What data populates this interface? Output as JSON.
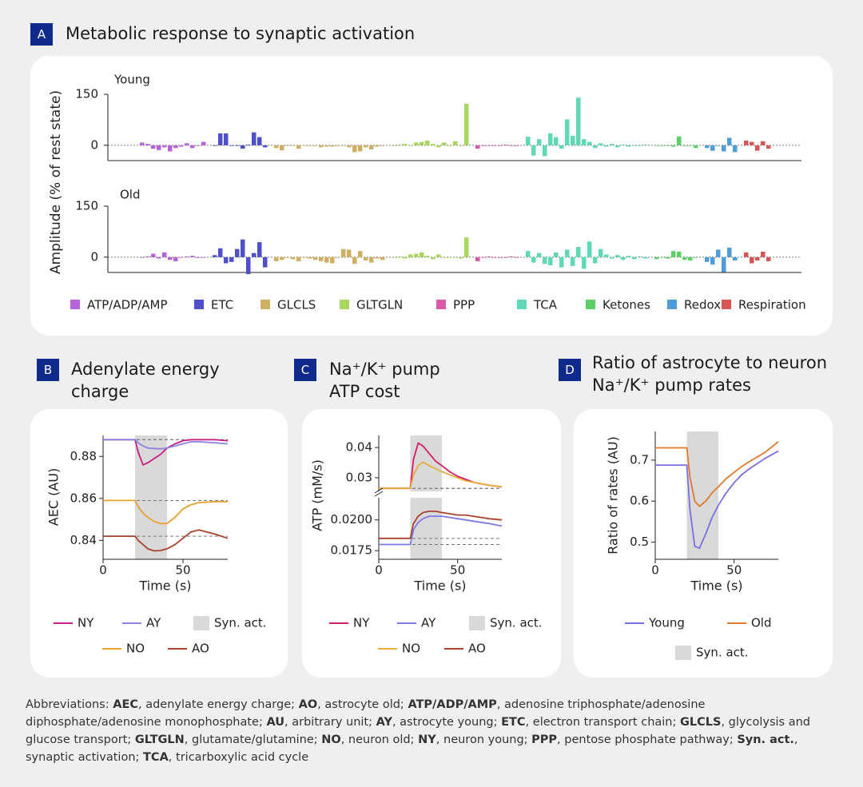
{
  "chart_data": [
    {
      "type": "bar",
      "label": "A",
      "title": "Metabolic response to synaptic activation",
      "ylabel": "Amplitude (% of rest state)",
      "ylim": [
        -45,
        150
      ],
      "yticks": [
        0,
        150
      ],
      "groups": [
        {
          "name": "ATP/ADP/AMP",
          "color": "#b663d8"
        },
        {
          "name": "ETC",
          "color": "#4f4fc9"
        },
        {
          "name": "GLCLS",
          "color": "#cfb063"
        },
        {
          "name": "GLTGLN",
          "color": "#a9d65e"
        },
        {
          "name": "PPP",
          "color": "#d95aa8"
        },
        {
          "name": "TCA",
          "color": "#5fd8b6"
        },
        {
          "name": "Ketones",
          "color": "#5dcf66"
        },
        {
          "name": "Redox",
          "color": "#4e9cd8"
        },
        {
          "name": "Respiration",
          "color": "#d65656"
        }
      ],
      "panels": [
        {
          "subtitle": "Young",
          "values": [
            [
              8,
              4,
              -10,
              -14,
              -6,
              -18,
              -8,
              -4,
              6,
              -8,
              0,
              10
            ],
            [
              0,
              35,
              35,
              0,
              -2,
              -10,
              2,
              38,
              24,
              -6
            ],
            [
              -8,
              -15,
              0,
              0,
              -10,
              0,
              -2,
              0,
              -6,
              -4,
              -4,
              -2,
              0,
              -6,
              -20,
              -18,
              -6,
              -12,
              -4,
              -2
            ],
            [
              0,
              2,
              4,
              0,
              8,
              10,
              14,
              4,
              -6,
              8,
              -2,
              12,
              0,
              122
            ],
            [
              -10,
              0,
              0,
              0,
              0,
              2,
              0,
              0
            ],
            [
              25,
              -30,
              18,
              -32,
              35,
              24,
              -10,
              76,
              28,
              140,
              18,
              10,
              -8,
              6,
              -4,
              4,
              -6,
              2,
              -4,
              -2,
              0,
              2
            ],
            [
              0,
              -2,
              0,
              -4,
              26,
              -2,
              0,
              -8
            ],
            [
              -8,
              -16,
              0,
              -18,
              22,
              -20
            ],
            [
              14,
              10,
              -16,
              12,
              -10
            ]
          ]
        },
        {
          "subtitle": "Old",
          "values": [
            [
              0,
              2,
              10,
              -4,
              14,
              -8,
              -12,
              0,
              2,
              4,
              -2,
              0
            ],
            [
              6,
              26,
              -18,
              -14,
              24,
              52,
              -50,
              12,
              44,
              -30
            ],
            [
              -12,
              -8,
              0,
              -6,
              -12,
              0,
              -4,
              -8,
              -12,
              -16,
              -18,
              0,
              24,
              22,
              -20,
              18,
              -10,
              -16,
              -4,
              -8
            ],
            [
              0,
              2,
              -4,
              8,
              10,
              14,
              4,
              -6,
              8,
              0,
              -2,
              0,
              -4,
              58
            ],
            [
              -12,
              0,
              2,
              0,
              -2,
              0,
              2,
              0
            ],
            [
              18,
              -16,
              12,
              -20,
              -24,
              14,
              -30,
              22,
              -26,
              30,
              -34,
              46,
              -18,
              24,
              8,
              -4,
              6,
              -8,
              4,
              -6,
              2,
              -4
            ],
            [
              -6,
              0,
              -4,
              18,
              16,
              -8,
              -10,
              0
            ],
            [
              -14,
              -22,
              22,
              -44,
              28,
              -10
            ],
            [
              14,
              -18,
              -10,
              16,
              -12
            ]
          ]
        }
      ]
    },
    {
      "type": "line",
      "label": "B",
      "title": "Adenylate energy charge",
      "xlabel": "Time (s)",
      "ylabel": "AEC (AU)",
      "x": [
        0,
        10,
        20,
        22,
        25,
        28,
        32,
        36,
        40,
        45,
        50,
        55,
        60,
        70,
        78
      ],
      "xlim": [
        0,
        78
      ],
      "xticks": [
        0,
        50
      ],
      "shade": [
        20,
        40
      ],
      "shade_label": "Syn. act.",
      "baselines": true,
      "panels": [
        {
          "ylim": [
            0.831,
            0.89
          ],
          "yticks": [
            0.84,
            0.86,
            0.88
          ],
          "series": [
            {
              "name": "NY",
              "color": "#c81e82",
              "values": [
                0.888,
                0.888,
                0.888,
                0.882,
                0.876,
                0.877,
                0.879,
                0.881,
                0.884,
                0.886,
                0.8875,
                0.888,
                0.888,
                0.888,
                0.8875
              ]
            },
            {
              "name": "AY",
              "color": "#8c84e0",
              "values": [
                0.888,
                0.888,
                0.888,
                0.8865,
                0.885,
                0.884,
                0.8838,
                0.8836,
                0.884,
                0.885,
                0.886,
                0.887,
                0.887,
                0.8865,
                0.886
              ]
            },
            {
              "name": "NO",
              "color": "#e8a030",
              "values": [
                0.859,
                0.859,
                0.859,
                0.856,
                0.853,
                0.851,
                0.849,
                0.848,
                0.848,
                0.851,
                0.855,
                0.857,
                0.858,
                0.8585,
                0.8585
              ]
            },
            {
              "name": "AO",
              "color": "#a8422e",
              "values": [
                0.842,
                0.842,
                0.842,
                0.84,
                0.838,
                0.836,
                0.835,
                0.8352,
                0.836,
                0.838,
                0.841,
                0.844,
                0.845,
                0.843,
                0.841
              ]
            }
          ]
        }
      ]
    },
    {
      "type": "line",
      "label": "C",
      "title": "Na⁺/K⁺ pump ATP cost",
      "xlabel": "Time (s)",
      "ylabel": "ATP (mM/s)",
      "x": [
        0,
        10,
        20,
        22,
        25,
        28,
        32,
        36,
        40,
        45,
        50,
        55,
        60,
        70,
        78
      ],
      "xlim": [
        0,
        78
      ],
      "xticks": [
        0,
        50
      ],
      "shade": [
        20,
        40
      ],
      "shade_label": "Syn. act.",
      "baselines": true,
      "panels": [
        {
          "ylim": [
            0.0255,
            0.044
          ],
          "yticks": [
            0.03,
            0.04
          ],
          "series": [
            {
              "name": "NY",
              "color": "#d61a6a",
              "values": [
                0.0265,
                0.0265,
                0.0265,
                0.036,
                0.0415,
                0.0405,
                0.038,
                0.0355,
                0.034,
                0.032,
                0.0305,
                0.0295,
                0.0285,
                0.0275,
                0.027
              ]
            },
            {
              "name": "NO",
              "color": "#e8ae3a",
              "values": [
                0.0265,
                0.0265,
                0.0265,
                0.031,
                0.034,
                0.0352,
                0.034,
                0.033,
                0.032,
                0.031,
                0.03,
                0.029,
                0.0285,
                0.0275,
                0.027
              ]
            }
          ]
        },
        {
          "ylim": [
            0.0168,
            0.0218
          ],
          "yticks": [
            0.0175,
            {
              "value": 0.02,
              "label": "0.0200"
            }
          ],
          "series": [
            {
              "name": "AY",
              "color": "#7f78e6",
              "values": [
                0.018,
                0.018,
                0.018,
                0.0192,
                0.0198,
                0.0201,
                0.0203,
                0.0203,
                0.0203,
                0.0202,
                0.0201,
                0.02,
                0.0199,
                0.0197,
                0.0195
              ]
            },
            {
              "name": "AO",
              "color": "#a8422e",
              "values": [
                0.0185,
                0.0185,
                0.0185,
                0.0197,
                0.0203,
                0.0206,
                0.0207,
                0.0207,
                0.0206,
                0.0205,
                0.0204,
                0.0204,
                0.0203,
                0.0201,
                0.02
              ]
            }
          ]
        }
      ]
    },
    {
      "type": "line",
      "label": "D",
      "title": "Ratio of astrocyte to neuron Na⁺/K⁺ pump rates",
      "xlabel": "Time (s)",
      "ylabel": "Ratio of rates (AU)",
      "x": [
        0,
        10,
        20,
        22,
        25,
        28,
        32,
        36,
        40,
        45,
        50,
        55,
        60,
        70,
        78
      ],
      "xlim": [
        0,
        78
      ],
      "xticks": [
        0,
        50
      ],
      "shade": [
        20,
        40
      ],
      "shade_label": "Syn. act.",
      "baselines": false,
      "panels": [
        {
          "ylim": [
            0.458,
            0.77
          ],
          "yticks": [
            0.5,
            0.6,
            0.7
          ],
          "series": [
            {
              "name": "Young",
              "color": "#7a6ee6",
              "values": [
                0.688,
                0.688,
                0.688,
                0.58,
                0.49,
                0.485,
                0.52,
                0.56,
                0.59,
                0.62,
                0.645,
                0.665,
                0.68,
                0.705,
                0.722
              ]
            },
            {
              "name": "Old",
              "color": "#e07a28",
              "values": [
                0.73,
                0.73,
                0.73,
                0.66,
                0.6,
                0.587,
                0.6,
                0.62,
                0.635,
                0.655,
                0.67,
                0.685,
                0.697,
                0.72,
                0.745
              ]
            }
          ]
        }
      ]
    }
  ],
  "abbreviations": {
    "label": "Abbreviations: ",
    "items": [
      {
        "term": "AEC",
        "text": ", adenylate energy charge; "
      },
      {
        "term": "AO",
        "text": ", astrocyte old; "
      },
      {
        "term": "ATP/ADP/AMP",
        "text": ", adenosine triphosphate/adenosine diphosphate/adenosine monophosphate; "
      },
      {
        "term": "AU",
        "text": ", arbitrary unit; "
      },
      {
        "term": "AY",
        "text": ", astrocyte young; "
      },
      {
        "term": "ETC",
        "text": ", electron transport chain; "
      },
      {
        "term": "GLCLS",
        "text": ", glycolysis and glucose transport; "
      },
      {
        "term": "GLTGLN",
        "text": ", glutamate/glutamine; "
      },
      {
        "term": "NO",
        "text": ", neuron old; "
      },
      {
        "term": "NY",
        "text": ", neuron young; "
      },
      {
        "term": "PPP",
        "text": ", pentose phosphate pathway; "
      },
      {
        "term": "Syn. act.",
        "text": ", synaptic activation; "
      },
      {
        "term": "TCA",
        "text": ", tricarboxylic acid cycle"
      }
    ]
  }
}
